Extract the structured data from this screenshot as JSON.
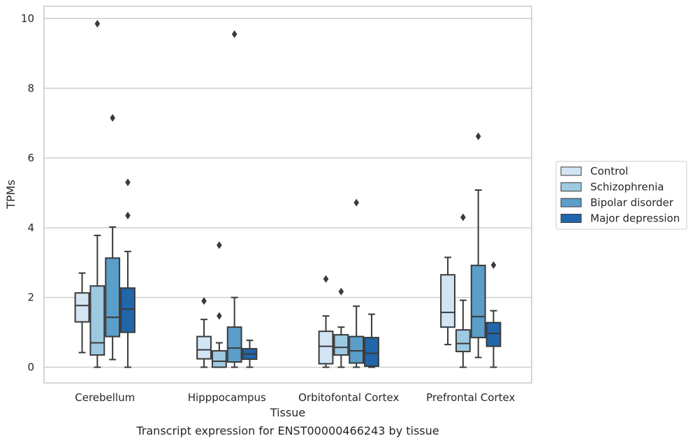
{
  "chart_data": {
    "type": "boxplot",
    "title": "Transcript expression for ENST00000466243 by tissue",
    "xlabel": "Tissue",
    "ylabel": "TPMs",
    "ylim": [
      -0.45,
      10.35
    ],
    "yticks": [
      0,
      2,
      4,
      6,
      8,
      10
    ],
    "ytick_labels": [
      "0",
      "2",
      "4",
      "6",
      "8",
      "10"
    ],
    "grid": "horizontal",
    "legend_placement": "right",
    "categories": [
      "Cerebellum",
      "Hipppocampus",
      "Orbitofontal Cortex",
      "Prefrontal Cortex"
    ],
    "series": [
      {
        "name": "Control",
        "color": "#d3e4f3",
        "boxes": [
          {
            "whisker_low": 0.42,
            "q1": 1.3,
            "median": 1.77,
            "q3": 2.13,
            "whisker_high": 2.7,
            "outliers": []
          },
          {
            "whisker_low": 0.0,
            "q1": 0.24,
            "median": 0.5,
            "q3": 0.88,
            "whisker_high": 1.37,
            "outliers": [
              1.9
            ]
          },
          {
            "whisker_low": 0.0,
            "q1": 0.1,
            "median": 0.6,
            "q3": 1.03,
            "whisker_high": 1.47,
            "outliers": [
              2.53
            ]
          },
          {
            "whisker_low": 0.65,
            "q1": 1.15,
            "median": 1.57,
            "q3": 2.65,
            "whisker_high": 3.15,
            "outliers": []
          }
        ]
      },
      {
        "name": "Schizophrenia",
        "color": "#9ec9e2",
        "boxes": [
          {
            "whisker_low": 0.0,
            "q1": 0.35,
            "median": 0.7,
            "q3": 2.33,
            "whisker_high": 3.78,
            "outliers": [
              9.85
            ]
          },
          {
            "whisker_low": 0.0,
            "q1": 0.0,
            "median": 0.17,
            "q3": 0.47,
            "whisker_high": 0.7,
            "outliers": [
              1.47,
              3.5
            ]
          },
          {
            "whisker_low": 0.0,
            "q1": 0.35,
            "median": 0.57,
            "q3": 0.93,
            "whisker_high": 1.15,
            "outliers": [
              2.17
            ]
          },
          {
            "whisker_low": 0.0,
            "q1": 0.45,
            "median": 0.68,
            "q3": 1.07,
            "whisker_high": 1.92,
            "outliers": [
              4.3
            ]
          }
        ]
      },
      {
        "name": "Bipolar disorder",
        "color": "#5a9ec9",
        "boxes": [
          {
            "whisker_low": 0.22,
            "q1": 0.88,
            "median": 1.43,
            "q3": 3.13,
            "whisker_high": 4.02,
            "outliers": [
              7.15
            ]
          },
          {
            "whisker_low": 0.0,
            "q1": 0.15,
            "median": 0.55,
            "q3": 1.15,
            "whisker_high": 2.0,
            "outliers": [
              9.55
            ]
          },
          {
            "whisker_low": 0.0,
            "q1": 0.12,
            "median": 0.47,
            "q3": 0.88,
            "whisker_high": 1.75,
            "outliers": [
              4.72
            ]
          },
          {
            "whisker_low": 0.28,
            "q1": 0.85,
            "median": 1.45,
            "q3": 2.92,
            "whisker_high": 5.08,
            "outliers": [
              6.62
            ]
          }
        ]
      },
      {
        "name": "Major depression",
        "color": "#2166ab",
        "boxes": [
          {
            "whisker_low": 0.0,
            "q1": 1.0,
            "median": 1.67,
            "q3": 2.27,
            "whisker_high": 3.32,
            "outliers": [
              4.35,
              5.3
            ]
          },
          {
            "whisker_low": 0.0,
            "q1": 0.23,
            "median": 0.38,
            "q3": 0.53,
            "whisker_high": 0.77,
            "outliers": []
          },
          {
            "whisker_low": 0.0,
            "q1": 0.03,
            "median": 0.4,
            "q3": 0.85,
            "whisker_high": 1.52,
            "outliers": []
          },
          {
            "whisker_low": 0.0,
            "q1": 0.6,
            "median": 0.97,
            "q3": 1.28,
            "whisker_high": 1.62,
            "outliers": [
              2.93
            ]
          }
        ]
      }
    ]
  },
  "colors": {
    "axis_frame": "#cccccc",
    "grid": "#cccccc",
    "box_edge": "#3a3a3a",
    "text": "#262626"
  }
}
